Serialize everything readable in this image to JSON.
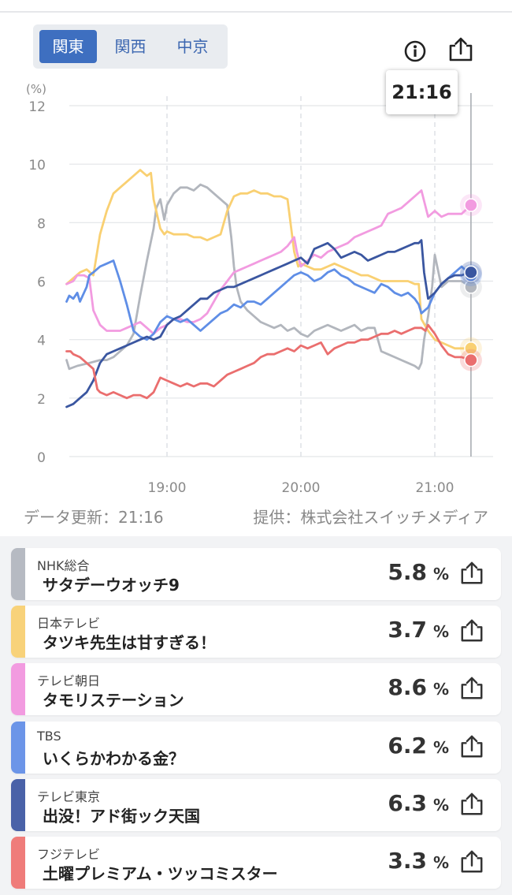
{
  "regions": [
    {
      "label": "関東",
      "active": true
    },
    {
      "label": "関西",
      "active": false
    },
    {
      "label": "中京",
      "active": false
    }
  ],
  "icons": {
    "info": "info-circle-icon",
    "share": "share-icon"
  },
  "tooltip_time": "21:16",
  "footer": {
    "updated": "データ更新：21:16",
    "provider": "提供：株式会社スイッチメディア"
  },
  "chart_data": {
    "type": "line",
    "ylabel": "(%)",
    "ylim": [
      0,
      12
    ],
    "yticks": [
      "0",
      "2",
      "4",
      "6",
      "8",
      "10",
      "12"
    ],
    "xlim": [
      18.25,
      21.33
    ],
    "xticks": [
      {
        "x": 19,
        "label": "19:00"
      },
      {
        "x": 20,
        "label": "20:00"
      },
      {
        "x": 21,
        "label": "21:00"
      }
    ],
    "cursor_x": 21.27,
    "series": [
      {
        "name": "NHK総合",
        "color": "#b2b6bd",
        "x": [
          18.25,
          18.27,
          18.33,
          18.42,
          18.5,
          18.55,
          18.6,
          18.65,
          18.7,
          18.75,
          18.8,
          18.85,
          18.9,
          18.92,
          18.95,
          18.98,
          19.0,
          19.05,
          19.1,
          19.15,
          19.2,
          19.25,
          19.3,
          19.35,
          19.4,
          19.45,
          19.48,
          19.5,
          19.52,
          19.55,
          19.6,
          19.65,
          19.7,
          19.75,
          19.8,
          19.85,
          19.9,
          19.95,
          20.0,
          20.05,
          20.1,
          20.15,
          20.2,
          20.25,
          20.3,
          20.35,
          20.4,
          20.45,
          20.5,
          20.55,
          20.6,
          20.65,
          20.7,
          20.75,
          20.8,
          20.85,
          20.88,
          20.9,
          20.92,
          20.95,
          20.98,
          21.0,
          21.05,
          21.1,
          21.15,
          21.2,
          21.27
        ],
        "values": [
          3.3,
          3.0,
          3.1,
          3.2,
          3.3,
          3.3,
          3.4,
          3.6,
          3.8,
          4.2,
          5.5,
          6.7,
          7.8,
          8.5,
          8.8,
          8.1,
          8.6,
          9.0,
          9.2,
          9.2,
          9.1,
          9.3,
          9.2,
          9.0,
          8.8,
          8.6,
          7.5,
          6.5,
          5.8,
          5.3,
          5.0,
          4.8,
          4.6,
          4.5,
          4.4,
          4.5,
          4.3,
          4.4,
          4.2,
          4.1,
          4.3,
          4.4,
          4.5,
          4.4,
          4.3,
          4.4,
          4.5,
          4.3,
          4.4,
          4.4,
          3.6,
          3.5,
          3.4,
          3.3,
          3.2,
          3.1,
          3.0,
          3.2,
          4.0,
          4.8,
          5.8,
          6.9,
          5.8,
          6.0,
          6.0,
          6.0,
          5.8
        ]
      },
      {
        "name": "日本テレビ",
        "color": "#f9d072",
        "x": [
          18.25,
          18.3,
          18.35,
          18.4,
          18.45,
          18.5,
          18.55,
          18.6,
          18.65,
          18.7,
          18.75,
          18.8,
          18.85,
          18.88,
          18.9,
          18.95,
          18.98,
          19.0,
          19.05,
          19.1,
          19.15,
          19.2,
          19.25,
          19.3,
          19.35,
          19.4,
          19.45,
          19.5,
          19.55,
          19.6,
          19.65,
          19.7,
          19.75,
          19.8,
          19.85,
          19.9,
          19.95,
          19.98,
          20.0,
          20.05,
          20.1,
          20.15,
          20.2,
          20.25,
          20.3,
          20.35,
          20.4,
          20.45,
          20.5,
          20.55,
          20.6,
          20.65,
          20.7,
          20.75,
          20.8,
          20.85,
          20.88,
          20.9,
          20.95,
          21.0,
          21.05,
          21.1,
          21.15,
          21.2,
          21.27
        ],
        "values": [
          5.9,
          6.1,
          6.3,
          6.4,
          6.2,
          7.6,
          8.4,
          9.0,
          9.2,
          9.4,
          9.6,
          9.8,
          9.6,
          9.7,
          8.8,
          7.8,
          7.6,
          7.7,
          7.6,
          7.6,
          7.6,
          7.5,
          7.5,
          7.4,
          7.5,
          7.6,
          8.4,
          8.9,
          9.0,
          9.0,
          9.1,
          9.0,
          9.0,
          8.9,
          8.9,
          8.8,
          7.0,
          6.5,
          6.6,
          6.5,
          6.4,
          6.4,
          6.5,
          6.6,
          6.5,
          6.4,
          6.3,
          6.2,
          6.2,
          6.1,
          6.0,
          6.0,
          6.0,
          6.0,
          6.0,
          5.9,
          5.9,
          4.7,
          4.3,
          4.0,
          3.9,
          3.8,
          3.7,
          3.7,
          3.7
        ]
      },
      {
        "name": "テレビ朝日",
        "color": "#f29be0",
        "x": [
          18.25,
          18.3,
          18.33,
          18.38,
          18.42,
          18.45,
          18.5,
          18.55,
          18.6,
          18.65,
          18.7,
          18.75,
          18.8,
          18.85,
          18.9,
          18.95,
          19.0,
          19.05,
          19.1,
          19.15,
          19.2,
          19.25,
          19.3,
          19.35,
          19.4,
          19.45,
          19.5,
          19.55,
          19.6,
          19.65,
          19.7,
          19.75,
          19.8,
          19.85,
          19.9,
          19.95,
          19.97,
          20.0,
          20.05,
          20.1,
          20.15,
          20.2,
          20.25,
          20.3,
          20.35,
          20.4,
          20.45,
          20.5,
          20.55,
          20.6,
          20.65,
          20.7,
          20.75,
          20.8,
          20.85,
          20.9,
          20.95,
          21.0,
          21.05,
          21.1,
          21.15,
          21.2,
          21.27
        ],
        "values": [
          5.9,
          6.0,
          6.2,
          6.2,
          6.1,
          5.0,
          4.5,
          4.3,
          4.3,
          4.3,
          4.4,
          4.5,
          4.6,
          4.4,
          4.2,
          4.4,
          4.5,
          4.7,
          4.7,
          4.6,
          4.6,
          4.7,
          4.9,
          5.3,
          5.7,
          6.0,
          6.3,
          6.4,
          6.5,
          6.6,
          6.7,
          6.8,
          6.9,
          7.0,
          7.2,
          7.5,
          7.0,
          6.5,
          6.7,
          6.9,
          6.8,
          7.0,
          7.1,
          7.2,
          7.3,
          7.5,
          7.6,
          7.7,
          7.8,
          7.9,
          8.3,
          8.4,
          8.5,
          8.7,
          8.9,
          9.1,
          8.2,
          8.4,
          8.2,
          8.3,
          8.3,
          8.3,
          8.6
        ]
      },
      {
        "name": "TBS",
        "color": "#5f8ee6",
        "x": [
          18.25,
          18.27,
          18.3,
          18.33,
          18.35,
          18.4,
          18.42,
          18.45,
          18.5,
          18.55,
          18.6,
          18.65,
          18.7,
          18.75,
          18.8,
          18.85,
          18.9,
          18.95,
          19.0,
          19.05,
          19.1,
          19.15,
          19.2,
          19.25,
          19.3,
          19.35,
          19.4,
          19.45,
          19.5,
          19.55,
          19.6,
          19.65,
          19.7,
          19.75,
          19.8,
          19.85,
          19.9,
          19.95,
          20.0,
          20.05,
          20.1,
          20.15,
          20.2,
          20.25,
          20.3,
          20.35,
          20.4,
          20.45,
          20.5,
          20.55,
          20.6,
          20.65,
          20.7,
          20.75,
          20.8,
          20.85,
          20.88,
          20.9,
          20.95,
          21.0,
          21.05,
          21.1,
          21.15,
          21.2,
          21.27
        ],
        "values": [
          5.3,
          5.5,
          5.4,
          5.6,
          5.3,
          5.8,
          6.2,
          6.3,
          6.5,
          6.6,
          6.7,
          6.0,
          5.2,
          4.3,
          4.1,
          4.0,
          4.2,
          4.6,
          4.8,
          4.7,
          4.6,
          4.7,
          4.5,
          4.3,
          4.5,
          4.7,
          4.9,
          5.0,
          5.2,
          5.1,
          5.3,
          5.3,
          5.2,
          5.4,
          5.6,
          5.8,
          6.0,
          6.2,
          6.3,
          6.2,
          6.0,
          6.1,
          6.3,
          6.4,
          6.2,
          6.1,
          5.9,
          5.8,
          5.7,
          5.6,
          5.9,
          5.8,
          5.6,
          5.5,
          5.6,
          5.4,
          5.2,
          4.9,
          5.1,
          5.6,
          5.9,
          6.1,
          6.3,
          6.5,
          6.2
        ]
      },
      {
        "name": "テレビ東京",
        "color": "#3a56a0",
        "x": [
          18.25,
          18.3,
          18.35,
          18.4,
          18.45,
          18.5,
          18.55,
          18.6,
          18.65,
          18.7,
          18.75,
          18.8,
          18.85,
          18.9,
          18.95,
          19.0,
          19.05,
          19.1,
          19.15,
          19.2,
          19.25,
          19.3,
          19.35,
          19.4,
          19.45,
          19.5,
          19.55,
          19.6,
          19.65,
          19.7,
          19.75,
          19.8,
          19.85,
          19.9,
          19.95,
          20.0,
          20.05,
          20.1,
          20.15,
          20.2,
          20.25,
          20.3,
          20.35,
          20.4,
          20.45,
          20.5,
          20.55,
          20.6,
          20.65,
          20.7,
          20.75,
          20.8,
          20.85,
          20.88,
          20.9,
          20.92,
          20.95,
          21.0,
          21.05,
          21.1,
          21.15,
          21.2,
          21.27
        ],
        "values": [
          1.7,
          1.8,
          2.0,
          2.2,
          2.6,
          3.2,
          3.5,
          3.6,
          3.7,
          3.8,
          3.9,
          4.0,
          4.1,
          4.0,
          4.1,
          4.5,
          4.7,
          4.8,
          5.0,
          5.2,
          5.4,
          5.4,
          5.6,
          5.7,
          5.8,
          5.8,
          5.9,
          6.0,
          6.1,
          6.2,
          6.3,
          6.4,
          6.5,
          6.6,
          6.7,
          6.8,
          6.6,
          7.1,
          7.2,
          7.3,
          7.1,
          6.8,
          6.9,
          7.0,
          6.9,
          6.7,
          6.8,
          6.9,
          7.0,
          7.0,
          7.1,
          7.2,
          7.3,
          7.3,
          7.4,
          6.3,
          5.4,
          5.6,
          5.9,
          6.1,
          6.2,
          6.2,
          6.3
        ]
      },
      {
        "name": "フジテレビ",
        "color": "#ea6e6e",
        "x": [
          18.25,
          18.28,
          18.3,
          18.35,
          18.4,
          18.45,
          18.48,
          18.5,
          18.55,
          18.6,
          18.65,
          18.7,
          18.75,
          18.8,
          18.85,
          18.9,
          18.95,
          19.0,
          19.05,
          19.1,
          19.15,
          19.2,
          19.25,
          19.3,
          19.35,
          19.4,
          19.45,
          19.5,
          19.55,
          19.6,
          19.65,
          19.7,
          19.75,
          19.8,
          19.85,
          19.9,
          19.95,
          20.0,
          20.05,
          20.1,
          20.15,
          20.2,
          20.25,
          20.3,
          20.35,
          20.4,
          20.45,
          20.5,
          20.55,
          20.6,
          20.65,
          20.7,
          20.75,
          20.8,
          20.85,
          20.9,
          20.93,
          20.95,
          21.0,
          21.05,
          21.1,
          21.15,
          21.2,
          21.27
        ],
        "values": [
          3.6,
          3.6,
          3.5,
          3.4,
          3.2,
          3.0,
          2.3,
          2.2,
          2.1,
          2.2,
          2.1,
          2.0,
          2.1,
          2.1,
          2.0,
          2.2,
          2.7,
          2.6,
          2.5,
          2.4,
          2.5,
          2.4,
          2.5,
          2.5,
          2.4,
          2.6,
          2.8,
          2.9,
          3.0,
          3.1,
          3.2,
          3.4,
          3.5,
          3.5,
          3.6,
          3.7,
          3.6,
          3.8,
          3.7,
          3.8,
          3.9,
          3.5,
          3.7,
          3.8,
          3.9,
          3.9,
          4.0,
          4.0,
          4.1,
          4.2,
          4.2,
          4.3,
          4.2,
          4.3,
          4.4,
          4.4,
          4.3,
          4.5,
          4.2,
          3.8,
          3.5,
          3.4,
          3.4,
          3.3
        ]
      }
    ]
  },
  "cards": [
    {
      "channel": "NHK総合",
      "program": "サタデーウオッチ9",
      "value": "5.8",
      "unit": "%",
      "color": "#b6bac2"
    },
    {
      "channel": "日本テレビ",
      "program": "タツキ先生は甘すぎる！",
      "value": "3.7",
      "unit": "%",
      "color": "#f8d27a"
    },
    {
      "channel": "テレビ朝日",
      "program": "タモリステーション",
      "value": "8.6",
      "unit": "%",
      "color": "#f29be0"
    },
    {
      "channel": "TBS",
      "program": "いくらかわかる金？",
      "value": "6.2",
      "unit": "%",
      "color": "#6c95e8"
    },
    {
      "channel": "テレビ東京",
      "program": "出没！アド街ック天国",
      "value": "6.3",
      "unit": "%",
      "color": "#4a62a8"
    },
    {
      "channel": "フジテレビ",
      "program": "土曜プレミアム・ツッコミスター",
      "value": "3.3",
      "unit": "%",
      "color": "#ef7c7a"
    }
  ]
}
